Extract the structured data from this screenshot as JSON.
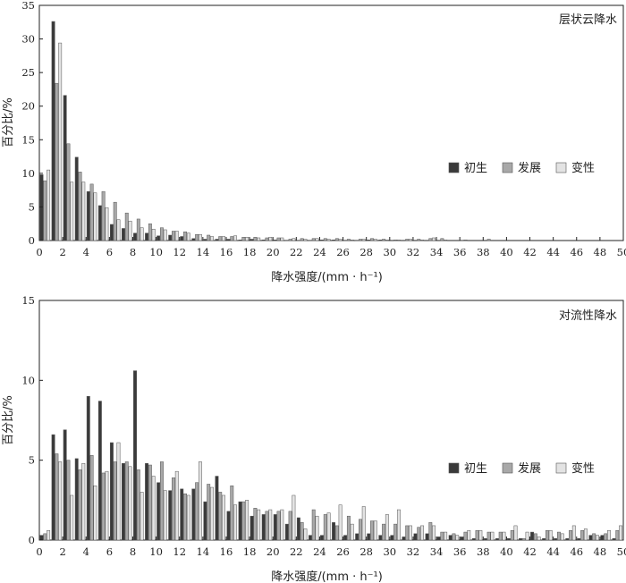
{
  "chart_data": [
    {
      "type": "bar",
      "title": "层状云降水",
      "xlabel": "降水强度/(mm · h⁻¹)",
      "ylabel": "百分比/%",
      "ylim": [
        0,
        35
      ],
      "yticks": [
        0,
        5,
        10,
        15,
        20,
        25,
        30,
        35
      ],
      "xlim": [
        0,
        50
      ],
      "xticks": [
        0,
        2,
        4,
        6,
        8,
        10,
        12,
        14,
        16,
        18,
        20,
        22,
        24,
        26,
        28,
        30,
        32,
        34,
        36,
        38,
        40,
        42,
        44,
        46,
        48,
        50
      ],
      "grid": false,
      "legend_position": "right",
      "x": [
        0,
        1,
        2,
        3,
        4,
        5,
        6,
        7,
        8,
        9,
        10,
        11,
        12,
        13,
        14,
        15,
        16,
        17,
        18,
        19,
        20,
        21,
        22,
        23,
        24,
        25,
        26,
        27,
        28,
        29,
        30,
        31,
        32,
        33,
        34,
        35,
        36,
        37,
        38,
        39,
        40,
        41,
        42,
        43,
        44,
        45,
        46,
        47,
        48,
        49
      ],
      "series": [
        {
          "name": "初生",
          "color": "#3a3a3a",
          "values": [
            9.8,
            32.6,
            21.6,
            12.4,
            7.3,
            5.2,
            2.4,
            1.8,
            1.1,
            1.1,
            0.7,
            0.8,
            0.6,
            0.3,
            0.2,
            0.2,
            0.2,
            0.1,
            0.2,
            0.1,
            0.1,
            0.05,
            0.05,
            0.05,
            0.1,
            0.1,
            0.05,
            0.05,
            0.1,
            0.1,
            0,
            0,
            0,
            0,
            0,
            0,
            0.05,
            0,
            0,
            0,
            0,
            0,
            0,
            0,
            0,
            0,
            0,
            0,
            0,
            0
          ]
        },
        {
          "name": "发展",
          "color": "#a8a8a8",
          "values": [
            8.9,
            23.4,
            14.4,
            10.2,
            8.4,
            7.3,
            5.7,
            4.1,
            3.2,
            2.5,
            1.9,
            1.4,
            1.3,
            0.9,
            0.8,
            0.6,
            0.6,
            0.5,
            0.5,
            0.4,
            0.4,
            0.2,
            0.3,
            0.3,
            0.3,
            0.3,
            0.2,
            0.2,
            0.3,
            0.2,
            0.1,
            0.2,
            0.2,
            0.3,
            0.3,
            0,
            0.1,
            0,
            0.2,
            0,
            0,
            0,
            0,
            0,
            0,
            0,
            0,
            0,
            0,
            0
          ]
        },
        {
          "name": "变性",
          "color": "#e3e3e3",
          "values": [
            10.5,
            29.4,
            8.7,
            8.7,
            7.1,
            4.9,
            3.1,
            2.9,
            1.9,
            1.7,
            1.6,
            1.4,
            1.1,
            0.9,
            0.6,
            0.6,
            0.7,
            0.5,
            0.4,
            0.5,
            0.4,
            0.3,
            0.2,
            0.3,
            0.2,
            0.2,
            0.1,
            0.2,
            0.2,
            0.1,
            0.1,
            0.2,
            0.1,
            0.4,
            0.1,
            0,
            0,
            0,
            0,
            0,
            0,
            0,
            0,
            0,
            0,
            0,
            0,
            0,
            0,
            0
          ]
        }
      ]
    },
    {
      "type": "bar",
      "title": "对流性降水",
      "xlabel": "降水强度/(mm · h⁻¹)",
      "ylabel": "百分比/%",
      "ylim": [
        0,
        15
      ],
      "yticks": [
        0,
        5,
        10,
        15
      ],
      "xlim": [
        0,
        50
      ],
      "xticks": [
        0,
        2,
        4,
        6,
        8,
        10,
        12,
        14,
        16,
        18,
        20,
        22,
        24,
        26,
        28,
        30,
        32,
        34,
        36,
        38,
        40,
        42,
        44,
        46,
        48,
        50
      ],
      "grid": false,
      "legend_position": "right",
      "x": [
        0,
        1,
        2,
        3,
        4,
        5,
        6,
        7,
        8,
        9,
        10,
        11,
        12,
        13,
        14,
        15,
        16,
        17,
        18,
        19,
        20,
        21,
        22,
        23,
        24,
        25,
        26,
        27,
        28,
        29,
        30,
        31,
        32,
        33,
        34,
        35,
        36,
        37,
        38,
        39,
        40,
        41,
        42,
        43,
        44,
        45,
        46,
        47,
        48,
        49
      ],
      "series": [
        {
          "name": "初生",
          "color": "#3a3a3a",
          "values": [
            0.3,
            6.6,
            6.9,
            5.1,
            9.0,
            8.7,
            6.1,
            4.8,
            10.6,
            4.8,
            3.6,
            3.1,
            3.2,
            3.2,
            2.4,
            4.0,
            1.8,
            2.4,
            1.5,
            1.6,
            1.6,
            1.0,
            1.4,
            0.3,
            0.3,
            1.1,
            0.3,
            0.4,
            0.4,
            0.3,
            0.3,
            0.2,
            0.4,
            0.4,
            0.2,
            0.3,
            0.2,
            0.1,
            0.1,
            0.1,
            0.1,
            0.1,
            0.5,
            0.1,
            0.1,
            0.1,
            0.1,
            0.3,
            0.3,
            0.1
          ]
        },
        {
          "name": "发展",
          "color": "#a8a8a8",
          "values": [
            0.4,
            5.4,
            5.0,
            4.4,
            5.3,
            4.2,
            4.9,
            4.9,
            4.4,
            4.7,
            4.9,
            3.9,
            2.9,
            3.6,
            3.5,
            3.0,
            3.4,
            2.4,
            2.0,
            1.8,
            1.8,
            1.8,
            1.1,
            1.9,
            1.6,
            0.9,
            1.5,
            1.3,
            1.2,
            1.0,
            1.0,
            0.9,
            0.8,
            1.1,
            0.5,
            0.4,
            0.5,
            0.6,
            0.5,
            0.5,
            0.6,
            0.1,
            0.4,
            0.6,
            0.5,
            0.6,
            0.6,
            0.4,
            0.4,
            0.6
          ]
        },
        {
          "name": "变性",
          "color": "#e3e3e3",
          "values": [
            0.6,
            4.9,
            2.8,
            4.8,
            3.4,
            4.3,
            6.1,
            4.6,
            3.0,
            4.0,
            3.1,
            4.3,
            2.8,
            4.9,
            3.3,
            2.8,
            2.2,
            2.5,
            1.9,
            1.9,
            1.9,
            2.8,
            0.7,
            1.5,
            1.7,
            2.2,
            1.0,
            2.1,
            1.2,
            1.6,
            1.9,
            0.9,
            0.9,
            0.9,
            0.5,
            0.3,
            0.6,
            0.6,
            0.5,
            0.5,
            0.9,
            0.5,
            0.2,
            0.6,
            0.4,
            0.9,
            0.7,
            0.3,
            0.6,
            0.9
          ]
        }
      ]
    }
  ]
}
